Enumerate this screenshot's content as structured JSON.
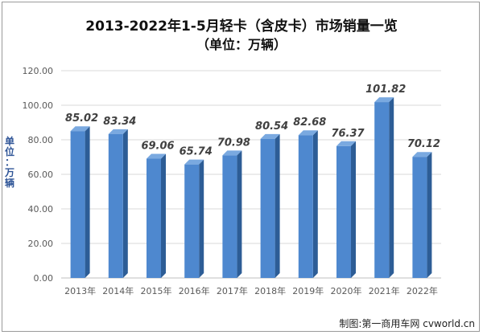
{
  "chart_data": {
    "type": "bar",
    "title": "2013-2022年1-5月轻卡（含皮卡）市场销量一览",
    "subtitle": "（单位：万辆）",
    "ylabel": "单位：万辆",
    "xlabel": "",
    "categories": [
      "2013年",
      "2014年",
      "2015年",
      "2016年",
      "2017年",
      "2018年",
      "2019年",
      "2020年",
      "2021年",
      "2022年"
    ],
    "values": [
      85.02,
      83.34,
      69.06,
      65.74,
      70.98,
      80.54,
      82.68,
      76.37,
      101.82,
      70.12
    ],
    "data_labels": [
      "85.02",
      "83.34",
      "69.06",
      "65.74",
      "70.98",
      "80.54",
      "82.68",
      "76.37",
      "101.82",
      "70.12"
    ],
    "ylim": [
      0,
      120
    ],
    "yticks": [
      "0.00",
      "20.00",
      "40.00",
      "60.00",
      "80.00",
      "100.00",
      "120.00"
    ],
    "grid": true,
    "colors": {
      "bar_front": "#4e88cf",
      "bar_side": "#2d5d96",
      "bar_top": "#7aa9e0",
      "grid": "#d9d9d9",
      "tick_text": "#595959",
      "label_text": "#404040"
    }
  },
  "watermark": "制图:第一商用车网 cvworld.cn"
}
